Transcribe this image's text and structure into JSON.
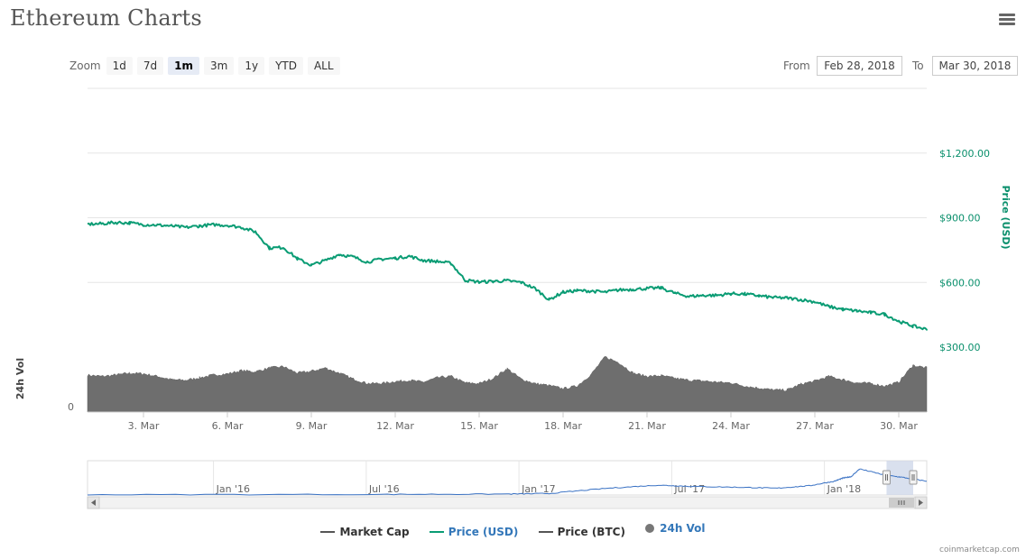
{
  "header": {
    "title": "Ethereum Charts"
  },
  "zoom": {
    "label": "Zoom",
    "options": [
      "1d",
      "7d",
      "1m",
      "3m",
      "1y",
      "YTD",
      "ALL"
    ],
    "selected": "1m"
  },
  "range": {
    "from_label": "From",
    "from_value": "Feb 28, 2018",
    "to_label": "To",
    "to_value": "Mar 30, 2018"
  },
  "legend": {
    "items": [
      {
        "label": "Market Cap",
        "color": "#555555",
        "shape": "line"
      },
      {
        "label": "Price (USD)",
        "color": "#0a9c74",
        "shape": "line"
      },
      {
        "label": "Price (BTC)",
        "color": "#555555",
        "shape": "line"
      },
      {
        "label": "24h Vol",
        "color": "#777777",
        "shape": "dot"
      }
    ]
  },
  "credit": "coinmarketcap.com",
  "chart_data": {
    "type": "line",
    "price_axis": {
      "title": "Price (USD)",
      "ticks": [
        300,
        600,
        900,
        1200
      ],
      "tick_labels": [
        "$300.00",
        "$600.00",
        "$900.00",
        "$1,200.00"
      ],
      "ylim": [
        300,
        1500
      ],
      "color": "#0a9c74"
    },
    "volume_axis": {
      "title": "24h Vol",
      "ticks": [
        0
      ],
      "tick_labels": [
        "0"
      ],
      "color": "#6e6e6e"
    },
    "x_axis": {
      "tick_labels": [
        "3. Mar",
        "6. Mar",
        "9. Mar",
        "12. Mar",
        "15. Mar",
        "18. Mar",
        "21. Mar",
        "24. Mar",
        "27. Mar",
        "30. Mar"
      ],
      "tick_days": [
        3,
        6,
        9,
        12,
        15,
        18,
        21,
        24,
        27,
        30
      ],
      "range_days": [
        1,
        31
      ]
    },
    "series": [
      {
        "name": "Price (USD)",
        "color": "#0a9c74",
        "x_days": [
          1.0,
          1.5,
          2.0,
          2.5,
          3.0,
          3.5,
          4.0,
          4.5,
          5.0,
          5.5,
          6.0,
          6.5,
          7.0,
          7.5,
          8.0,
          8.5,
          9.0,
          9.5,
          10.0,
          10.5,
          11.0,
          11.5,
          12.0,
          12.5,
          13.0,
          13.5,
          14.0,
          14.5,
          15.0,
          15.5,
          16.0,
          16.5,
          17.0,
          17.5,
          18.0,
          18.5,
          19.0,
          19.5,
          20.0,
          20.5,
          21.0,
          21.5,
          22.0,
          22.5,
          23.0,
          23.5,
          24.0,
          24.5,
          25.0,
          25.5,
          26.0,
          26.5,
          27.0,
          27.5,
          28.0,
          28.5,
          29.0,
          29.5,
          30.0,
          30.5,
          31.0
        ],
        "values": [
          870,
          872,
          878,
          876,
          868,
          866,
          862,
          855,
          862,
          868,
          865,
          855,
          835,
          760,
          762,
          710,
          680,
          702,
          730,
          718,
          695,
          708,
          712,
          722,
          702,
          698,
          688,
          610,
          602,
          605,
          608,
          600,
          572,
          520,
          555,
          562,
          560,
          555,
          565,
          568,
          572,
          575,
          550,
          535,
          540,
          540,
          548,
          546,
          538,
          530,
          528,
          520,
          510,
          488,
          475,
          468,
          460,
          452,
          420,
          398,
          382
        ]
      },
      {
        "name": "24h Vol",
        "color": "#6e6e6e",
        "x_days": [
          1.0,
          1.5,
          2.0,
          2.5,
          3.0,
          3.5,
          4.0,
          4.5,
          5.0,
          5.5,
          6.0,
          6.5,
          7.0,
          7.5,
          8.0,
          8.5,
          9.0,
          9.5,
          10.0,
          10.5,
          11.0,
          11.5,
          12.0,
          12.5,
          13.0,
          13.5,
          14.0,
          14.5,
          15.0,
          15.5,
          16.0,
          16.5,
          17.0,
          17.5,
          18.0,
          18.5,
          19.0,
          19.5,
          20.0,
          20.5,
          21.0,
          21.5,
          22.0,
          22.5,
          23.0,
          23.5,
          24.0,
          24.5,
          25.0,
          25.5,
          26.0,
          26.5,
          27.0,
          27.5,
          28.0,
          28.5,
          29.0,
          29.5,
          30.0,
          30.5,
          31.0
        ],
        "values": [
          0.57,
          0.55,
          0.57,
          0.6,
          0.59,
          0.55,
          0.5,
          0.49,
          0.53,
          0.57,
          0.59,
          0.64,
          0.62,
          0.68,
          0.7,
          0.6,
          0.63,
          0.68,
          0.6,
          0.51,
          0.44,
          0.44,
          0.47,
          0.49,
          0.46,
          0.53,
          0.55,
          0.45,
          0.44,
          0.52,
          0.67,
          0.51,
          0.44,
          0.41,
          0.36,
          0.4,
          0.58,
          0.85,
          0.76,
          0.6,
          0.55,
          0.56,
          0.52,
          0.49,
          0.48,
          0.46,
          0.45,
          0.4,
          0.37,
          0.34,
          0.34,
          0.43,
          0.48,
          0.55,
          0.5,
          0.45,
          0.44,
          0.4,
          0.46,
          0.72,
          0.68
        ]
      }
    ],
    "navigator": {
      "tick_labels": [
        "Jan '16",
        "Jul '16",
        "Jan '17",
        "Jul '17",
        "Jan '18"
      ],
      "color": "#3a72c4",
      "x_frac": [
        0.0,
        0.35,
        0.5,
        0.55,
        0.62,
        0.68,
        0.72,
        0.78,
        0.82,
        0.86,
        0.89,
        0.9,
        0.91,
        0.92,
        0.95,
        0.97,
        1.0
      ],
      "values": [
        0.01,
        0.02,
        0.03,
        0.05,
        0.22,
        0.32,
        0.28,
        0.25,
        0.22,
        0.3,
        0.45,
        0.55,
        0.6,
        0.85,
        0.65,
        0.58,
        0.45
      ],
      "selected_from_frac": 0.965,
      "selected_to_frac": 1.0
    }
  }
}
